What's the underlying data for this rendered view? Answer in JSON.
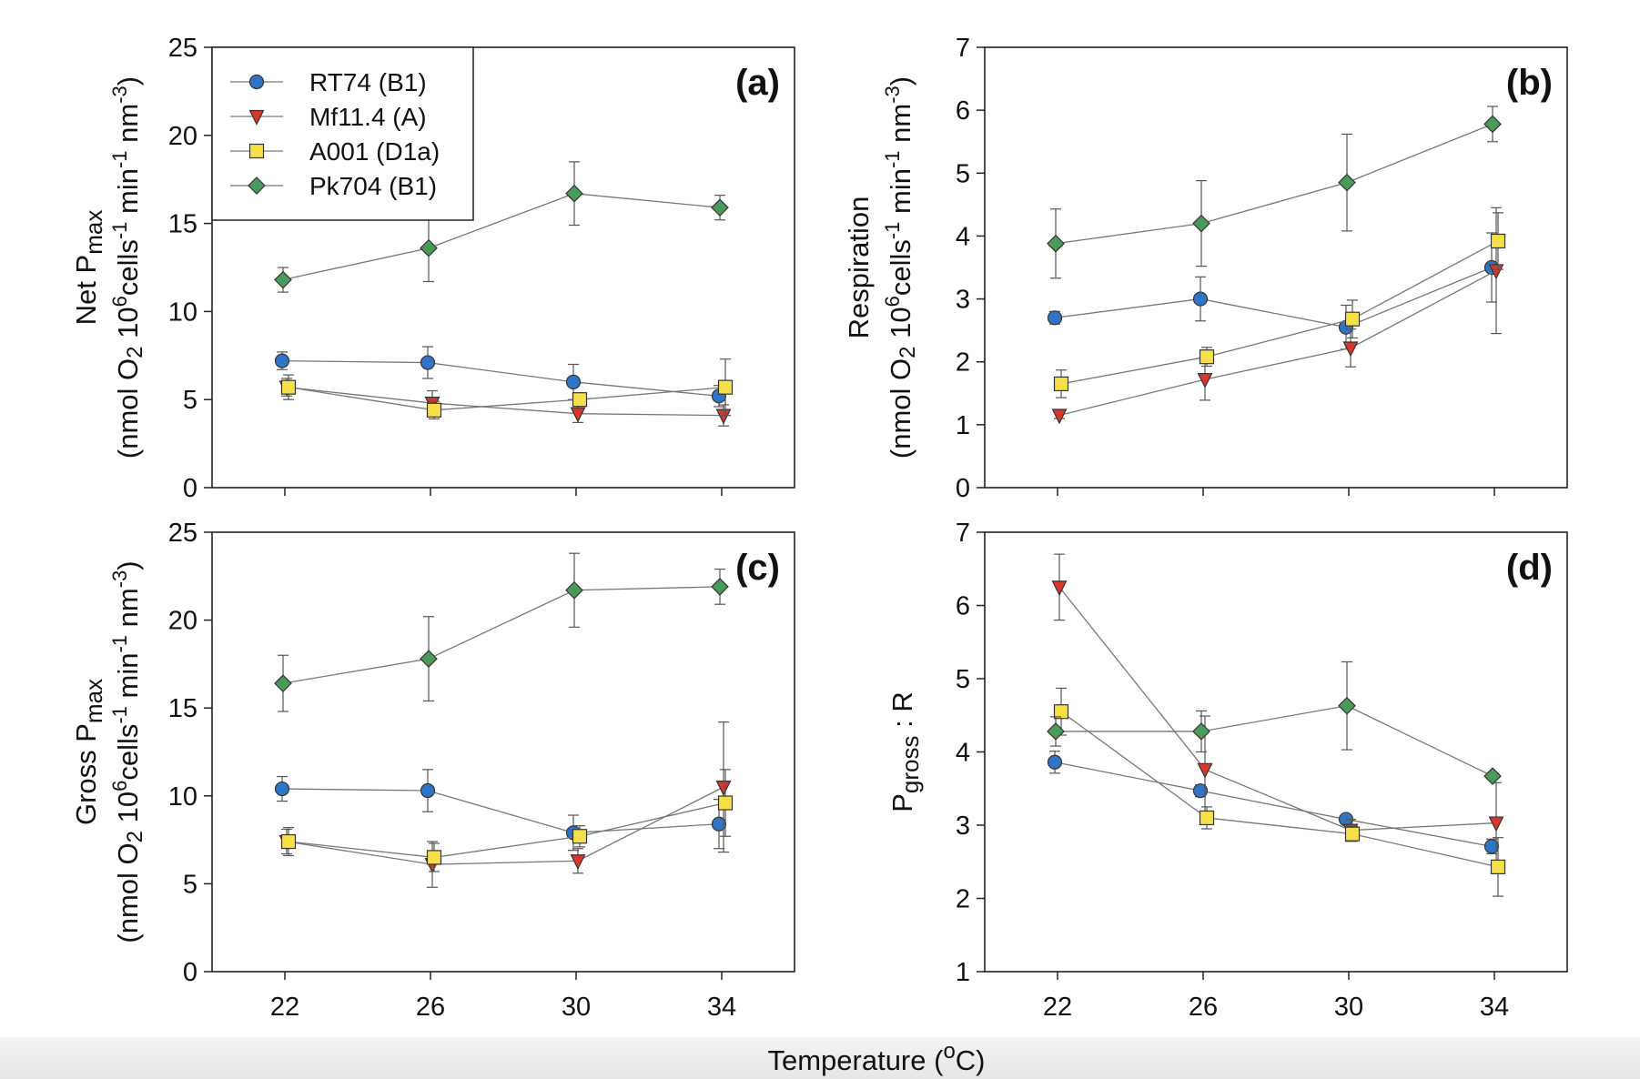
{
  "shared_xlabel": {
    "text": "Temperature (",
    "sup": "o",
    "after": "C)"
  },
  "legend": [
    {
      "name": "RT74 (B1)",
      "marker": "circle",
      "color": "#2f75c4"
    },
    {
      "name": "Mf11.4 (A)",
      "marker": "triangle-down",
      "color": "#d7362a"
    },
    {
      "name": "A001 (D1a)",
      "marker": "square",
      "color": "#f6e04a"
    },
    {
      "name": "Pk704 (B1)",
      "marker": "diamond",
      "color": "#4a9a5c"
    }
  ],
  "chart_data": [
    {
      "type": "line",
      "panel": "(a)",
      "ylabel_line1": {
        "pre": "Net P",
        "sub": "max"
      },
      "ylabel_line2": "(nmol O2 10^6 cells^-1 min^-1 nm^-3)",
      "x": [
        22,
        26,
        30,
        34
      ],
      "xlim": [
        20,
        36
      ],
      "ylim": [
        0,
        25
      ],
      "yticks": [
        0,
        5,
        10,
        15,
        20,
        25
      ],
      "legend_position": "top-left",
      "series": [
        {
          "name": "RT74 (B1)",
          "values": [
            7.2,
            7.1,
            6.0,
            5.2
          ],
          "err": [
            0.5,
            0.9,
            1.0,
            0.6
          ]
        },
        {
          "name": "Mf11.4 (A)",
          "values": [
            5.7,
            4.8,
            4.2,
            4.1
          ],
          "err": [
            0.5,
            0.7,
            0.5,
            0.6
          ]
        },
        {
          "name": "A001 (D1a)",
          "values": [
            5.7,
            4.4,
            5.0,
            5.7
          ],
          "err": [
            0.7,
            0.5,
            0.3,
            1.6
          ]
        },
        {
          "name": "Pk704 (B1)",
          "values": [
            11.8,
            13.6,
            16.7,
            15.9
          ],
          "err": [
            0.7,
            1.9,
            1.8,
            0.7
          ]
        }
      ]
    },
    {
      "type": "line",
      "panel": "(b)",
      "ylabel_line1": {
        "pre": "Respiration",
        "sub": ""
      },
      "ylabel_line2": "(nmol O2 10^6 cells^-1 min^-1 nm^-3)",
      "x": [
        22,
        26,
        30,
        34
      ],
      "xlim": [
        20,
        36
      ],
      "ylim": [
        0,
        7
      ],
      "yticks": [
        0,
        1,
        2,
        3,
        4,
        5,
        6,
        7
      ],
      "series": [
        {
          "name": "RT74 (B1)",
          "values": [
            2.7,
            3.0,
            2.55,
            3.5
          ],
          "err": [
            0.1,
            0.35,
            0.35,
            0.55
          ]
        },
        {
          "name": "Mf11.4 (A)",
          "values": [
            1.15,
            1.72,
            2.22,
            3.45
          ],
          "err": [
            0.05,
            0.33,
            0.3,
            1.0
          ]
        },
        {
          "name": "A001 (D1a)",
          "values": [
            1.65,
            2.08,
            2.68,
            3.92
          ],
          "err": [
            0.22,
            0.15,
            0.3,
            0.45
          ]
        },
        {
          "name": "Pk704 (B1)",
          "values": [
            3.88,
            4.2,
            4.85,
            5.78
          ],
          "err": [
            0.55,
            0.68,
            0.77,
            0.28
          ]
        }
      ]
    },
    {
      "type": "line",
      "panel": "(c)",
      "ylabel_line1": {
        "pre": "Gross P",
        "sub": "max"
      },
      "ylabel_line2": "(nmol O2 10^6 cells^-1 min^-1 nm^-3)",
      "x": [
        22,
        26,
        30,
        34
      ],
      "xlim": [
        20,
        36
      ],
      "ylim": [
        0,
        25
      ],
      "yticks": [
        0,
        5,
        10,
        15,
        20,
        25
      ],
      "series": [
        {
          "name": "RT74 (B1)",
          "values": [
            10.4,
            10.3,
            7.9,
            8.4
          ],
          "err": [
            0.7,
            1.2,
            1.0,
            1.4
          ]
        },
        {
          "name": "Mf11.4 (A)",
          "values": [
            7.4,
            6.1,
            6.3,
            10.5
          ],
          "err": [
            0.7,
            1.3,
            0.7,
            3.7
          ]
        },
        {
          "name": "A001 (D1a)",
          "values": [
            7.4,
            6.5,
            7.7,
            9.6
          ],
          "err": [
            0.8,
            0.8,
            0.6,
            1.9
          ]
        },
        {
          "name": "Pk704 (B1)",
          "values": [
            16.4,
            17.8,
            21.7,
            21.9
          ],
          "err": [
            1.6,
            2.4,
            2.1,
            1.0
          ]
        }
      ]
    },
    {
      "type": "line",
      "panel": "(d)",
      "ylabel_line1": {
        "pre": "P",
        "sub": "gross",
        "post": " : R"
      },
      "ylabel_line2": "",
      "x": [
        22,
        26,
        30,
        34
      ],
      "xlim": [
        20,
        36
      ],
      "ylim": [
        1,
        7
      ],
      "yticks": [
        1,
        2,
        3,
        4,
        5,
        6,
        7
      ],
      "series": [
        {
          "name": "RT74 (B1)",
          "values": [
            3.86,
            3.47,
            3.08,
            2.71
          ],
          "err": [
            0.15,
            0.08,
            0.06,
            0.1
          ]
        },
        {
          "name": "Mf11.4 (A)",
          "values": [
            6.25,
            3.76,
            2.93,
            3.03
          ],
          "err": [
            0.45,
            0.73,
            0.15,
            0.55
          ]
        },
        {
          "name": "A001 (D1a)",
          "values": [
            4.55,
            3.1,
            2.88,
            2.43
          ],
          "err": [
            0.32,
            0.15,
            0.1,
            0.4
          ]
        },
        {
          "name": "Pk704 (B1)",
          "values": [
            4.28,
            4.28,
            4.63,
            3.67
          ],
          "err": [
            0.2,
            0.28,
            0.6,
            0.04
          ]
        }
      ]
    }
  ]
}
